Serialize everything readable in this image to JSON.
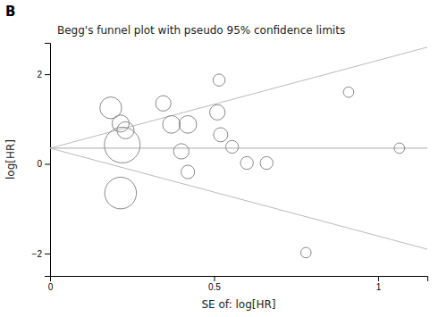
{
  "chart_data": {
    "type": "scatter",
    "title": "Begg's funnel plot with pseudo 95% confidence limits",
    "x_label": "SE of: log[HR]",
    "y_label": "log[HR]",
    "panel_label": "B",
    "xlim": [
      0,
      1.15
    ],
    "ylim": [
      -2.5,
      2.7
    ],
    "xticks": [
      0,
      0.5,
      1
    ],
    "yticks": [
      {
        "value": -2,
        "label": "−2"
      },
      0,
      2
    ],
    "series": [
      {
        "type": "line",
        "x": [
          0.0,
          1.15
        ],
        "values": [
          0.35,
          2.604
        ],
        "color": "#bbbbbb"
      },
      {
        "type": "line",
        "x": [
          0.0,
          1.15
        ],
        "values": [
          0.35,
          -1.904
        ],
        "color": "#bbbbbb"
      },
      {
        "type": "line",
        "x": [
          0,
          1.15
        ],
        "values": [
          0.35,
          0.35
        ],
        "color": "#aaaaaa"
      },
      {
        "type": "scatter",
        "marker": "circle-open",
        "color": "#888888",
        "x": [
          0.185,
          0.215,
          0.23,
          0.22,
          0.215,
          0.345,
          0.37,
          0.42,
          0.4,
          0.42,
          0.515,
          0.51,
          0.52,
          0.555,
          0.6,
          0.66,
          0.78,
          0.91,
          1.065
        ],
        "values": [
          1.25,
          0.9,
          0.75,
          0.42,
          -0.65,
          1.35,
          0.88,
          0.88,
          0.28,
          -0.18,
          1.87,
          1.15,
          0.65,
          0.38,
          0.02,
          0.02,
          -1.98,
          1.6,
          0.35
        ],
        "sizes": [
          260,
          160,
          160,
          700,
          550,
          130,
          170,
          170,
          130,
          100,
          80,
          130,
          110,
          90,
          90,
          90,
          60,
          60,
          60
        ]
      }
    ]
  }
}
